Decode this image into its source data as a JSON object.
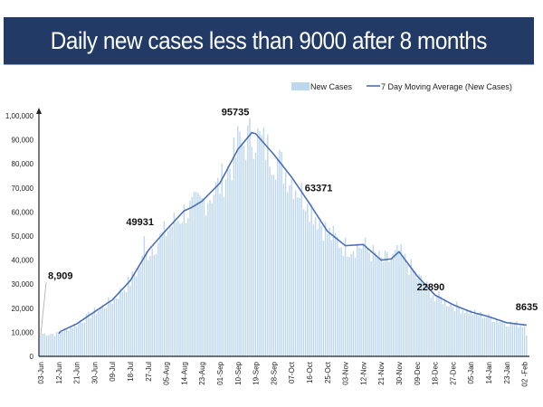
{
  "title": "Daily new cases less than 9000 after 8 months",
  "chart_data": {
    "type": "bar",
    "title": "Daily new cases less than 9000 after 8 months",
    "xlabel": "",
    "ylabel": "",
    "ylim": [
      0,
      100000
    ],
    "grid": false,
    "legend_position": "top-right",
    "y_ticks": [
      "0",
      "10,000",
      "20,000",
      "30,000",
      "40,000",
      "50,000",
      "60,000",
      "70,000",
      "80,000",
      "90,000",
      "1,00,000"
    ],
    "x_ticks": [
      "03-Jun",
      "12-Jun",
      "21-Jun",
      "30-Jun",
      "09-Jul",
      "18-Jul",
      "27-Jul",
      "05-Aug",
      "14-Aug",
      "23-Aug",
      "01-Sep",
      "10-Sep",
      "19-Sep",
      "28-Sep",
      "07-Oct",
      "16-Oct",
      "25-Oct",
      "03-Nov",
      "12-Nov",
      "21-Nov",
      "30-Nov",
      "09-Dec",
      "18-Dec",
      "27-Dec",
      "05-Jan",
      "14-Jan",
      "23-Jan",
      "02 -Feb"
    ],
    "series": [
      {
        "name": "New Cases",
        "type": "bar",
        "color": "#bdd7ee"
      },
      {
        "name": "7 Day Moving Average (New Cases)",
        "type": "line",
        "color": "#4a6fb5",
        "x": [
          "12-Jun",
          "21-Jun",
          "30-Jun",
          "09-Jul",
          "18-Jul",
          "27-Jul",
          "05-Aug",
          "14-Aug",
          "18-Aug",
          "23-Aug",
          "01-Sep",
          "10-Sep",
          "17-Sep",
          "19-Sep",
          "28-Sep",
          "07-Oct",
          "16-Oct",
          "25-Oct",
          "03-Nov",
          "12-Nov",
          "21-Nov",
          "26-Nov",
          "30-Nov",
          "09-Dec",
          "18-Dec",
          "27-Dec",
          "05-Jan",
          "14-Jan",
          "23-Jan",
          "02-Feb"
        ],
        "values": [
          10000,
          13500,
          18500,
          23500,
          31500,
          44000,
          52500,
          60500,
          62000,
          64500,
          72000,
          86000,
          93000,
          92500,
          84000,
          74500,
          63500,
          52000,
          46000,
          46500,
          40000,
          40500,
          43500,
          33500,
          25500,
          21500,
          18500,
          16500,
          14000,
          13000
        ]
      }
    ],
    "annotations": [
      {
        "label": "8,909",
        "date": "03-Jun",
        "value": 8909
      },
      {
        "label": "49931",
        "date": "25-Jul",
        "value": 49931
      },
      {
        "label": "95735",
        "date": "10-Sep",
        "value": 95735
      },
      {
        "label": "63371",
        "date": "15-Oct",
        "value": 63371
      },
      {
        "label": "22890",
        "date": "18-Dec",
        "value": 22890
      },
      {
        "label": "8635",
        "date": "02-Feb",
        "value": 8635
      }
    ]
  }
}
